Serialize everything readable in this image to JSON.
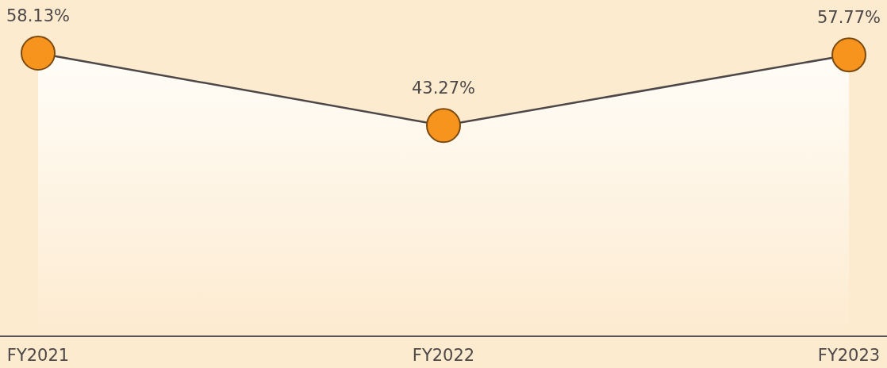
{
  "chart_data": {
    "type": "line",
    "categories": [
      "FY2021",
      "FY2022",
      "FY2023"
    ],
    "series": [
      {
        "color": "#4d4848",
        "colors": [
          "#f7941d",
          "#f7941d",
          "#f7941d"
        ],
        "values": [
          58.13,
          43.27,
          57.77
        ],
        "value_labels": [
          "58.13%",
          "43.27%",
          "57.77%"
        ]
      }
    ],
    "marker": "circle",
    "line_style": "solid"
  }
}
